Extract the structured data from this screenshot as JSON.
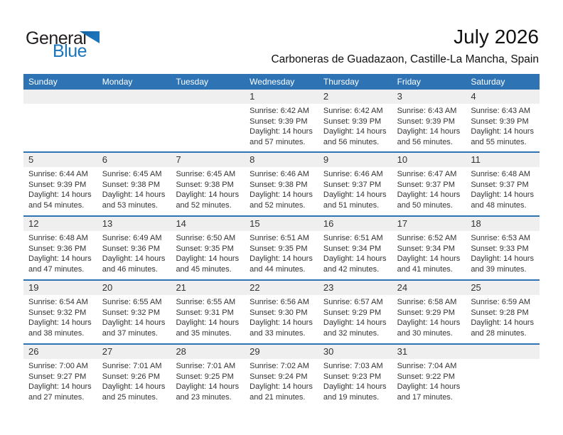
{
  "logo": {
    "general": "General",
    "blue": "Blue"
  },
  "title": "July 2026",
  "subtitle": "Carboneras de Guadazaon, Castille-La Mancha, Spain",
  "weekdays": [
    "Sunday",
    "Monday",
    "Tuesday",
    "Wednesday",
    "Thursday",
    "Friday",
    "Saturday"
  ],
  "colors": {
    "header_blue": "#2E74B5",
    "row_separator_blue": "#2E74B5",
    "day_band_gray": "#EFEFEF",
    "logo_blue": "#1B75BC",
    "text_dark": "#333333"
  },
  "weeks": [
    {
      "cells": [
        null,
        null,
        null,
        {
          "day": "1",
          "lines": [
            "Sunrise: 6:42 AM",
            "Sunset: 9:39 PM",
            "Daylight: 14 hours",
            "and 57 minutes."
          ]
        },
        {
          "day": "2",
          "lines": [
            "Sunrise: 6:42 AM",
            "Sunset: 9:39 PM",
            "Daylight: 14 hours",
            "and 56 minutes."
          ]
        },
        {
          "day": "3",
          "lines": [
            "Sunrise: 6:43 AM",
            "Sunset: 9:39 PM",
            "Daylight: 14 hours",
            "and 56 minutes."
          ]
        },
        {
          "day": "4",
          "lines": [
            "Sunrise: 6:43 AM",
            "Sunset: 9:39 PM",
            "Daylight: 14 hours",
            "and 55 minutes."
          ]
        }
      ]
    },
    {
      "cells": [
        {
          "day": "5",
          "lines": [
            "Sunrise: 6:44 AM",
            "Sunset: 9:39 PM",
            "Daylight: 14 hours",
            "and 54 minutes."
          ]
        },
        {
          "day": "6",
          "lines": [
            "Sunrise: 6:45 AM",
            "Sunset: 9:38 PM",
            "Daylight: 14 hours",
            "and 53 minutes."
          ]
        },
        {
          "day": "7",
          "lines": [
            "Sunrise: 6:45 AM",
            "Sunset: 9:38 PM",
            "Daylight: 14 hours",
            "and 52 minutes."
          ]
        },
        {
          "day": "8",
          "lines": [
            "Sunrise: 6:46 AM",
            "Sunset: 9:38 PM",
            "Daylight: 14 hours",
            "and 52 minutes."
          ]
        },
        {
          "day": "9",
          "lines": [
            "Sunrise: 6:46 AM",
            "Sunset: 9:37 PM",
            "Daylight: 14 hours",
            "and 51 minutes."
          ]
        },
        {
          "day": "10",
          "lines": [
            "Sunrise: 6:47 AM",
            "Sunset: 9:37 PM",
            "Daylight: 14 hours",
            "and 50 minutes."
          ]
        },
        {
          "day": "11",
          "lines": [
            "Sunrise: 6:48 AM",
            "Sunset: 9:37 PM",
            "Daylight: 14 hours",
            "and 48 minutes."
          ]
        }
      ]
    },
    {
      "cells": [
        {
          "day": "12",
          "lines": [
            "Sunrise: 6:48 AM",
            "Sunset: 9:36 PM",
            "Daylight: 14 hours",
            "and 47 minutes."
          ]
        },
        {
          "day": "13",
          "lines": [
            "Sunrise: 6:49 AM",
            "Sunset: 9:36 PM",
            "Daylight: 14 hours",
            "and 46 minutes."
          ]
        },
        {
          "day": "14",
          "lines": [
            "Sunrise: 6:50 AM",
            "Sunset: 9:35 PM",
            "Daylight: 14 hours",
            "and 45 minutes."
          ]
        },
        {
          "day": "15",
          "lines": [
            "Sunrise: 6:51 AM",
            "Sunset: 9:35 PM",
            "Daylight: 14 hours",
            "and 44 minutes."
          ]
        },
        {
          "day": "16",
          "lines": [
            "Sunrise: 6:51 AM",
            "Sunset: 9:34 PM",
            "Daylight: 14 hours",
            "and 42 minutes."
          ]
        },
        {
          "day": "17",
          "lines": [
            "Sunrise: 6:52 AM",
            "Sunset: 9:34 PM",
            "Daylight: 14 hours",
            "and 41 minutes."
          ]
        },
        {
          "day": "18",
          "lines": [
            "Sunrise: 6:53 AM",
            "Sunset: 9:33 PM",
            "Daylight: 14 hours",
            "and 39 minutes."
          ]
        }
      ]
    },
    {
      "cells": [
        {
          "day": "19",
          "lines": [
            "Sunrise: 6:54 AM",
            "Sunset: 9:32 PM",
            "Daylight: 14 hours",
            "and 38 minutes."
          ]
        },
        {
          "day": "20",
          "lines": [
            "Sunrise: 6:55 AM",
            "Sunset: 9:32 PM",
            "Daylight: 14 hours",
            "and 37 minutes."
          ]
        },
        {
          "day": "21",
          "lines": [
            "Sunrise: 6:55 AM",
            "Sunset: 9:31 PM",
            "Daylight: 14 hours",
            "and 35 minutes."
          ]
        },
        {
          "day": "22",
          "lines": [
            "Sunrise: 6:56 AM",
            "Sunset: 9:30 PM",
            "Daylight: 14 hours",
            "and 33 minutes."
          ]
        },
        {
          "day": "23",
          "lines": [
            "Sunrise: 6:57 AM",
            "Sunset: 9:29 PM",
            "Daylight: 14 hours",
            "and 32 minutes."
          ]
        },
        {
          "day": "24",
          "lines": [
            "Sunrise: 6:58 AM",
            "Sunset: 9:29 PM",
            "Daylight: 14 hours",
            "and 30 minutes."
          ]
        },
        {
          "day": "25",
          "lines": [
            "Sunrise: 6:59 AM",
            "Sunset: 9:28 PM",
            "Daylight: 14 hours",
            "and 28 minutes."
          ]
        }
      ]
    },
    {
      "cells": [
        {
          "day": "26",
          "lines": [
            "Sunrise: 7:00 AM",
            "Sunset: 9:27 PM",
            "Daylight: 14 hours",
            "and 27 minutes."
          ]
        },
        {
          "day": "27",
          "lines": [
            "Sunrise: 7:01 AM",
            "Sunset: 9:26 PM",
            "Daylight: 14 hours",
            "and 25 minutes."
          ]
        },
        {
          "day": "28",
          "lines": [
            "Sunrise: 7:01 AM",
            "Sunset: 9:25 PM",
            "Daylight: 14 hours",
            "and 23 minutes."
          ]
        },
        {
          "day": "29",
          "lines": [
            "Sunrise: 7:02 AM",
            "Sunset: 9:24 PM",
            "Daylight: 14 hours",
            "and 21 minutes."
          ]
        },
        {
          "day": "30",
          "lines": [
            "Sunrise: 7:03 AM",
            "Sunset: 9:23 PM",
            "Daylight: 14 hours",
            "and 19 minutes."
          ]
        },
        {
          "day": "31",
          "lines": [
            "Sunrise: 7:04 AM",
            "Sunset: 9:22 PM",
            "Daylight: 14 hours",
            "and 17 minutes."
          ]
        },
        null
      ]
    }
  ]
}
